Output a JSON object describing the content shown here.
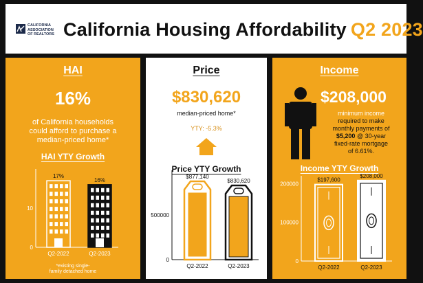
{
  "header": {
    "logo_text": [
      "CALIFORNIA",
      "ASSOCIATION",
      "OF REALTORS"
    ],
    "title": "California Housing Affordability",
    "quarter": "Q2 2023",
    "accent_color": "#f2a51c"
  },
  "hai": {
    "heading": "HAI",
    "value": "16%",
    "desc": [
      "of California households",
      "could afford to purchase a",
      "median-priced home*"
    ],
    "growth_heading": "HAI YTY Growth",
    "footnote": [
      "*existing single-",
      "family detached home"
    ]
  },
  "price": {
    "heading": "Price",
    "value": "$830,620",
    "sub": "median-priced home*",
    "yty": "YTY: -5.3%",
    "growth_heading": "Price YTY Growth"
  },
  "income": {
    "heading": "Income",
    "value": "$208,000",
    "desc": [
      "minimum income",
      "required to make",
      "monthly payments of"
    ],
    "desc_bold": "$5,200",
    "desc_rest": [
      "@ 30-year",
      "fixed-rate mortgage",
      "of 6.61%."
    ],
    "growth_heading": "Income YTY Growth"
  },
  "chart_data": [
    {
      "type": "bar",
      "title": "HAI YTY Growth",
      "categories": [
        "Q2-2022",
        "Q2-2023"
      ],
      "values": [
        17,
        16
      ],
      "value_labels": [
        "17%",
        "16%"
      ],
      "yticks": [
        0,
        10
      ],
      "ylim": [
        0,
        20
      ]
    },
    {
      "type": "bar",
      "title": "Price YTY Growth",
      "categories": [
        "Q2-2022",
        "Q2-2023"
      ],
      "values": [
        877140,
        830620
      ],
      "value_labels": [
        "$877,140",
        "$830,620"
      ],
      "yticks": [
        0,
        500000
      ],
      "ylim": [
        0,
        1000000
      ]
    },
    {
      "type": "bar",
      "title": "Income YTY Growth",
      "categories": [
        "Q2-2022",
        "Q2-2023"
      ],
      "values": [
        197600,
        208000
      ],
      "value_labels": [
        "$197,600",
        "$208,000"
      ],
      "yticks": [
        0,
        100000,
        200000
      ],
      "ylim": [
        0,
        220000
      ]
    }
  ]
}
